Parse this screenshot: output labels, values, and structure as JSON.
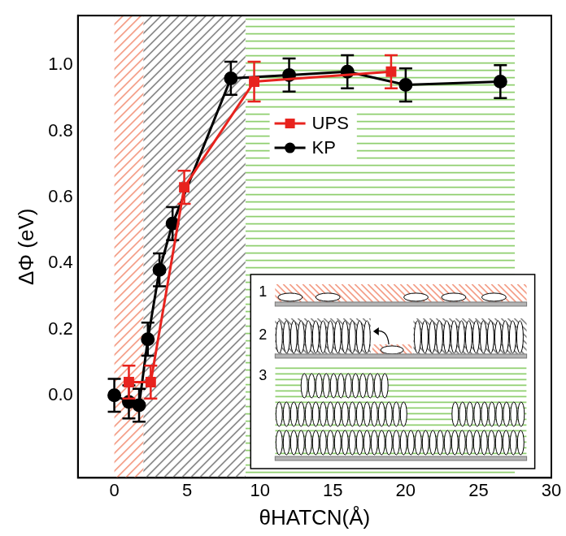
{
  "chart_data": {
    "type": "line",
    "x_label": "θHATCN(Å)",
    "y_label": "ΔΦ (eV)",
    "xlim": [
      -2.5,
      30
    ],
    "xticks": [
      0,
      5,
      10,
      15,
      20,
      25,
      30
    ],
    "ylim": [
      -0.25,
      1.15
    ],
    "yticks": [
      {
        "value": 0,
        "label": "0.0"
      },
      0.2,
      0.4,
      0.6,
      0.8,
      {
        "value": 1,
        "label": "1.0"
      }
    ],
    "grid": false,
    "legend": "upper center",
    "series": [
      {
        "name": "UPS",
        "color": "#e8231e",
        "marker": "square",
        "line_style": "solid",
        "x": [
          1,
          2.5,
          4.8,
          9.6,
          19
        ],
        "values": [
          0.04,
          0.04,
          0.63,
          0.95,
          0.98
        ],
        "errors": [
          0.05,
          0.05,
          0.05,
          0.06,
          0.05
        ]
      },
      {
        "name": "KP",
        "color": "#000000",
        "marker": "circle",
        "line_style": "solid",
        "x": [
          0,
          1,
          1.7,
          2.3,
          3.1,
          4,
          8,
          12,
          16,
          20,
          26.5
        ],
        "values": [
          0,
          -0.02,
          -0.03,
          0.17,
          0.38,
          0.52,
          0.96,
          0.97,
          0.98,
          0.94,
          0.95
        ],
        "errors": [
          0.05,
          0.05,
          0.05,
          0.05,
          0.05,
          0.05,
          0.05,
          0.05,
          0.05,
          0.05,
          0.05
        ]
      }
    ],
    "regions": [
      {
        "from": 0,
        "to": 2,
        "color": "#f4a08a"
      },
      {
        "from": 2,
        "to": 9,
        "color": "#8c8c8c"
      },
      {
        "from": 9,
        "to": 27.5,
        "color": "#8fcf6f"
      }
    ],
    "inset": {
      "labels": [
        "1",
        "2",
        "3"
      ]
    }
  }
}
